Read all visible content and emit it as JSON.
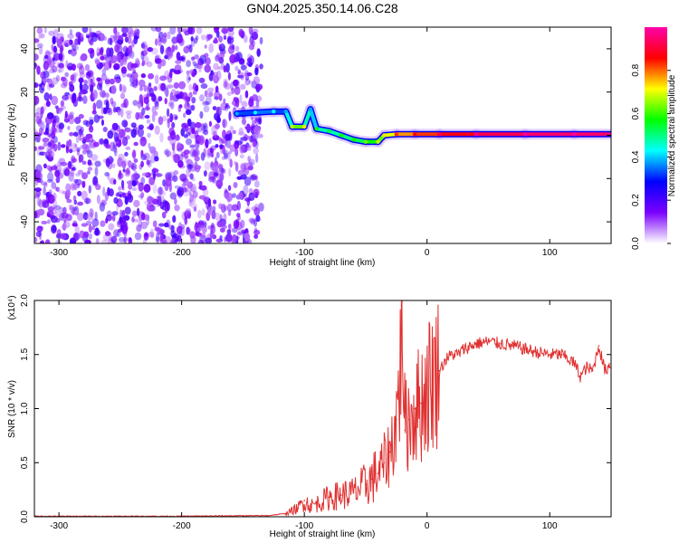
{
  "figure_title": "GN04.2025.350.14.06.C28",
  "chart_data": [
    {
      "type": "heatmap",
      "xlabel": "Height of straight line (km)",
      "ylabel": "Frequency (Hz)",
      "xlim": [
        -320,
        150
      ],
      "ylim": [
        -50,
        50
      ],
      "xticks": [
        -300,
        -200,
        -100,
        0,
        100
      ],
      "yticks": [
        -40,
        -20,
        0,
        20,
        40
      ],
      "colorbar": {
        "label": "Normalized spectral amplitude",
        "range": [
          0,
          1
        ],
        "ticks": [
          0.0,
          0.2,
          0.4,
          0.6,
          0.8
        ],
        "colormap": [
          "#ffffff",
          "#7b00ff",
          "#0000ff",
          "#00ffff",
          "#00ff00",
          "#ffff00",
          "#ff0000",
          "#ff00aa"
        ]
      },
      "noise_region_x": [
        -320,
        -135
      ],
      "ridge": [
        {
          "x": -155,
          "y": 10,
          "amp": 0.3
        },
        {
          "x": -140,
          "y": 10.5,
          "amp": 0.35
        },
        {
          "x": -125,
          "y": 11,
          "amp": 0.35
        },
        {
          "x": -115,
          "y": 11,
          "amp": 0.3
        },
        {
          "x": -110,
          "y": 4,
          "amp": 0.6
        },
        {
          "x": -100,
          "y": 4,
          "amp": 0.65
        },
        {
          "x": -95,
          "y": 12,
          "amp": 0.3
        },
        {
          "x": -90,
          "y": 3,
          "amp": 0.5
        },
        {
          "x": -80,
          "y": 2,
          "amp": 0.45
        },
        {
          "x": -70,
          "y": 0,
          "amp": 0.5
        },
        {
          "x": -60,
          "y": -2,
          "amp": 0.5
        },
        {
          "x": -50,
          "y": -3,
          "amp": 0.55
        },
        {
          "x": -40,
          "y": -3,
          "amp": 0.6
        },
        {
          "x": -35,
          "y": 0,
          "amp": 0.65
        },
        {
          "x": -25,
          "y": 0.5,
          "amp": 0.75
        },
        {
          "x": -10,
          "y": 0.5,
          "amp": 0.8
        },
        {
          "x": 10,
          "y": 0.5,
          "amp": 0.85
        },
        {
          "x": 40,
          "y": 0.5,
          "amp": 0.9
        },
        {
          "x": 80,
          "y": 0.5,
          "amp": 0.95
        },
        {
          "x": 120,
          "y": 0.5,
          "amp": 0.95
        },
        {
          "x": 150,
          "y": 0.5,
          "amp": 0.95
        }
      ]
    },
    {
      "type": "line",
      "xlabel": "Height of straight line (km)",
      "ylabel": "SNR (10 * v/v)",
      "yscale_label": "(x10⁴)",
      "xlim": [
        -320,
        150
      ],
      "ylim": [
        0,
        2.0
      ],
      "xticks": [
        -300,
        -200,
        -100,
        0,
        100
      ],
      "yticks": [
        0.0,
        0.5,
        1.0,
        1.5,
        2.0
      ],
      "series": [
        {
          "color": "#e03030",
          "x": [
            -320,
            -250,
            -200,
            -150,
            -130,
            -115,
            -105,
            -100,
            -95,
            -90,
            -80,
            -70,
            -60,
            -50,
            -45,
            -40,
            -35,
            -30,
            -25,
            -22,
            -20,
            -18,
            -15,
            -10,
            -5,
            0,
            5,
            10,
            15,
            20,
            25,
            30,
            40,
            50,
            60,
            70,
            80,
            90,
            100,
            110,
            120,
            125,
            130,
            135,
            140,
            145,
            150
          ],
          "y": [
            0.005,
            0.005,
            0.005,
            0.01,
            0.01,
            0.03,
            0.08,
            0.15,
            0.1,
            0.12,
            0.18,
            0.2,
            0.22,
            0.3,
            0.35,
            0.4,
            0.5,
            0.6,
            0.9,
            1.3,
            2.0,
            0.8,
            0.9,
            1.0,
            1.05,
            1.2,
            1.3,
            1.35,
            1.45,
            1.5,
            1.5,
            1.55,
            1.6,
            1.62,
            1.6,
            1.58,
            1.55,
            1.52,
            1.5,
            1.5,
            1.42,
            1.3,
            1.38,
            1.35,
            1.58,
            1.35,
            1.42
          ]
        }
      ]
    }
  ]
}
